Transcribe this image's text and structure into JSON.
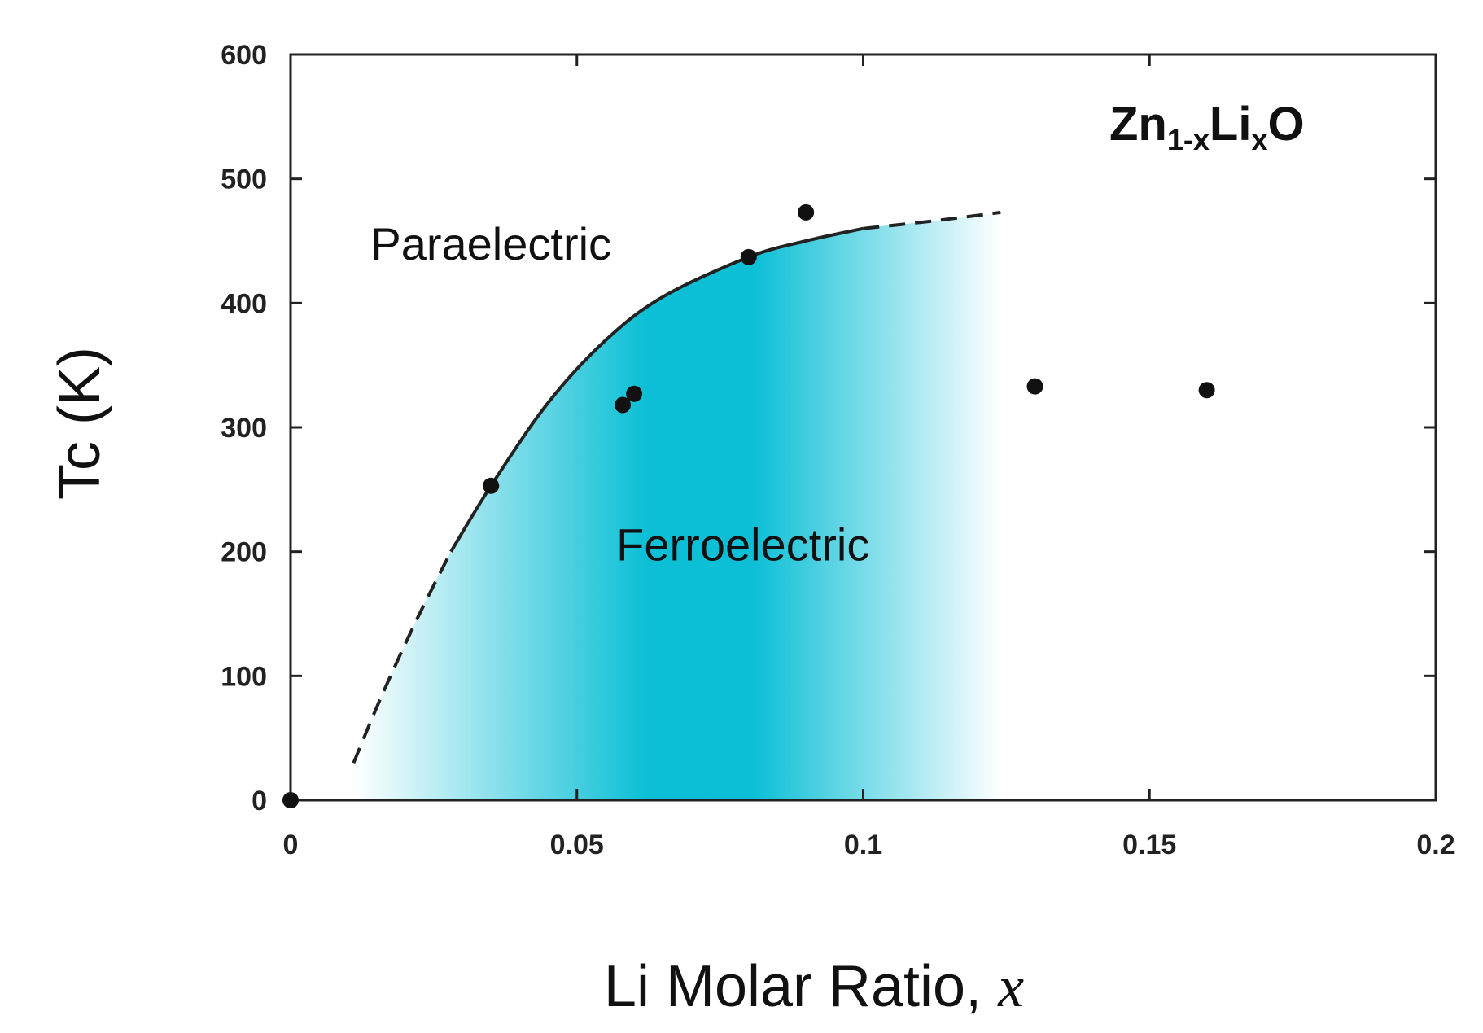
{
  "chart_data": {
    "type": "scatter",
    "title": "",
    "compound_label": {
      "base1": "Zn",
      "sub1": "1-x",
      "base2": "Li",
      "sub2": "x",
      "base3": "O"
    },
    "xlabel": {
      "main": "Li Molar Ratio, ",
      "variable": "x"
    },
    "ylabel": "Tc (K)",
    "xlim": [
      0,
      0.2
    ],
    "ylim": [
      0,
      600
    ],
    "xticks": [
      {
        "value": 0,
        "label": "0"
      },
      {
        "value": 0.05,
        "label": "0.05"
      },
      {
        "value": 0.1,
        "label": "0.1"
      },
      {
        "value": 0.15,
        "label": "0.15"
      },
      {
        "value": 0.2,
        "label": "0.2"
      }
    ],
    "yticks": [
      {
        "value": 0,
        "label": "0"
      },
      {
        "value": 100,
        "label": "100"
      },
      {
        "value": 200,
        "label": "200"
      },
      {
        "value": 300,
        "label": "300"
      },
      {
        "value": 400,
        "label": "400"
      },
      {
        "value": 500,
        "label": "500"
      },
      {
        "value": 600,
        "label": "600"
      }
    ],
    "points": [
      {
        "x": 0.0,
        "y": 0
      },
      {
        "x": 0.035,
        "y": 253
      },
      {
        "x": 0.058,
        "y": 318
      },
      {
        "x": 0.06,
        "y": 327
      },
      {
        "x": 0.08,
        "y": 437
      },
      {
        "x": 0.09,
        "y": 473
      },
      {
        "x": 0.13,
        "y": 333
      },
      {
        "x": 0.16,
        "y": 330
      }
    ],
    "phase_boundary": {
      "dashed_low": [
        [
          0.011,
          30
        ],
        [
          0.016,
          85
        ],
        [
          0.022,
          145
        ],
        [
          0.028,
          200
        ]
      ],
      "solid": [
        [
          0.028,
          200
        ],
        [
          0.035,
          253
        ],
        [
          0.045,
          320
        ],
        [
          0.055,
          370
        ],
        [
          0.065,
          405
        ],
        [
          0.08,
          437
        ],
        [
          0.09,
          450
        ],
        [
          0.1,
          460
        ]
      ],
      "dashed_high": [
        [
          0.1,
          460
        ],
        [
          0.112,
          466
        ],
        [
          0.124,
          473
        ]
      ]
    },
    "regions": [
      {
        "name": "Paraelectric",
        "x": 0.035,
        "y": 435
      },
      {
        "name": "Ferroelectric",
        "x": 0.079,
        "y": 193
      }
    ],
    "shading_color": "#00bcd4"
  }
}
